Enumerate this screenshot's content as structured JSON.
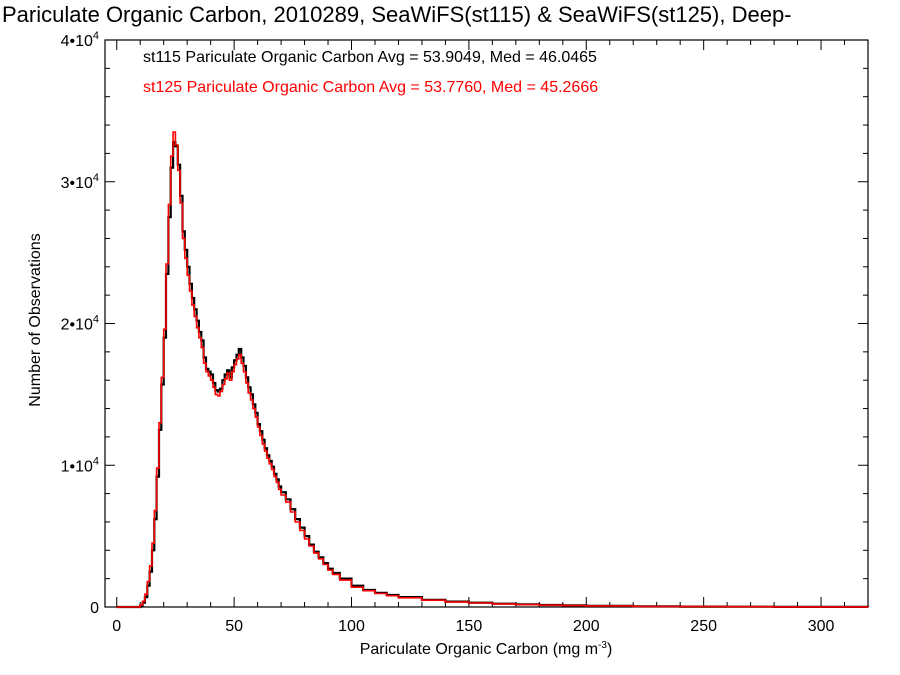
{
  "chart_data": {
    "type": "line",
    "title": "Pariculate Organic Carbon, 2010289, SeaWiFS(st115) & SeaWiFS(st125), Deep-",
    "xlabel_main": "Pariculate Organic Carbon (mg m",
    "xlabel_sup": "-3",
    "xlabel_end": ")",
    "ylabel": "Number of Observations",
    "xlim": [
      -5,
      320
    ],
    "ylim": [
      0,
      40000
    ],
    "x_ticks": [
      0,
      50,
      100,
      150,
      200,
      250,
      300
    ],
    "x_tick_labels": [
      "0",
      "50",
      "100",
      "150",
      "200",
      "250",
      "300"
    ],
    "y_ticks": [
      {
        "value": 0,
        "base": "0",
        "exp": ""
      },
      {
        "value": 10000,
        "base": "1•10",
        "exp": "4"
      },
      {
        "value": 20000,
        "base": "2•10",
        "exp": "4"
      },
      {
        "value": 30000,
        "base": "3•10",
        "exp": "4"
      },
      {
        "value": 40000,
        "base": "4•10",
        "exp": "4"
      }
    ],
    "legend": [
      {
        "text": "st115 Pariculate Organic Carbon Avg = 53.9049, Med = 46.0465",
        "color": "#000000"
      },
      {
        "text": "st125 Pariculate Organic Carbon Avg = 53.7760, Med = 45.2666",
        "color": "#ff0000"
      }
    ],
    "series": [
      {
        "color": "#000000",
        "x": [
          0,
          8,
          10,
          11,
          12,
          13,
          14,
          15,
          16,
          17,
          18,
          19,
          20,
          21,
          22,
          23,
          24,
          25,
          26,
          27,
          28,
          29,
          30,
          31,
          32,
          33,
          34,
          35,
          36,
          37,
          38,
          39,
          40,
          41,
          42,
          43,
          44,
          45,
          46,
          47,
          48,
          49,
          50,
          51,
          52,
          53,
          54,
          55,
          56,
          57,
          58,
          59,
          60,
          61,
          62,
          63,
          64,
          65,
          66,
          67,
          68,
          69,
          70,
          72,
          74,
          76,
          78,
          80,
          82,
          84,
          86,
          88,
          90,
          92,
          95,
          100,
          105,
          110,
          115,
          120,
          130,
          140,
          150,
          160,
          170,
          180,
          190,
          200,
          220,
          240,
          260,
          280,
          300,
          320
        ],
        "y": [
          0,
          0,
          100,
          300,
          700,
          1500,
          2500,
          4000,
          6200,
          9200,
          12500,
          15700,
          19000,
          23500,
          27500,
          31000,
          32800,
          32500,
          31200,
          29000,
          26500,
          25200,
          24000,
          22800,
          21800,
          21000,
          20200,
          19400,
          18800,
          17600,
          16800,
          16600,
          16400,
          15800,
          15300,
          15200,
          15400,
          16000,
          16400,
          16700,
          16200,
          16900,
          17400,
          17800,
          18200,
          17600,
          17000,
          16200,
          15500,
          15000,
          14300,
          13700,
          12900,
          12400,
          11800,
          11200,
          10700,
          10300,
          9900,
          9400,
          9000,
          8500,
          8100,
          7600,
          6900,
          6200,
          5600,
          5000,
          4400,
          3900,
          3500,
          3100,
          2700,
          2400,
          2000,
          1500,
          1200,
          1000,
          850,
          700,
          500,
          380,
          300,
          230,
          180,
          140,
          110,
          80,
          50,
          30,
          20,
          10,
          5,
          0
        ]
      },
      {
        "color": "#ff0000",
        "x": [
          0,
          8,
          10,
          11,
          12,
          13,
          14,
          15,
          16,
          17,
          18,
          19,
          20,
          21,
          22,
          23,
          24,
          25,
          26,
          27,
          28,
          29,
          30,
          31,
          32,
          33,
          34,
          35,
          36,
          37,
          38,
          39,
          40,
          41,
          42,
          43,
          44,
          45,
          46,
          47,
          48,
          49,
          50,
          51,
          52,
          53,
          54,
          55,
          56,
          57,
          58,
          59,
          60,
          61,
          62,
          63,
          64,
          65,
          66,
          67,
          68,
          69,
          70,
          72,
          74,
          76,
          78,
          80,
          82,
          84,
          86,
          88,
          90,
          92,
          95,
          100,
          105,
          110,
          115,
          120,
          130,
          140,
          150,
          160,
          170,
          180,
          190,
          200,
          220,
          240,
          260,
          280,
          300,
          320
        ],
        "y": [
          0,
          0,
          150,
          400,
          900,
          1800,
          2900,
          4500,
          6800,
          9800,
          13000,
          16200,
          19600,
          24200,
          28400,
          31800,
          33500,
          32600,
          30800,
          28500,
          26000,
          24600,
          23400,
          22300,
          21300,
          20500,
          19700,
          19000,
          18300,
          17200,
          16600,
          16300,
          16000,
          15500,
          15000,
          14900,
          15200,
          15700,
          16100,
          16500,
          16000,
          16600,
          17100,
          17500,
          17800,
          17200,
          16600,
          15800,
          15100,
          14600,
          14000,
          13400,
          12700,
          12100,
          11500,
          11000,
          10500,
          10100,
          9700,
          9200,
          8800,
          8300,
          7900,
          7400,
          6700,
          6000,
          5400,
          4800,
          4300,
          3800,
          3400,
          3000,
          2600,
          2300,
          1900,
          1400,
          1150,
          950,
          800,
          650,
          480,
          360,
          280,
          220,
          170,
          130,
          100,
          75,
          45,
          28,
          18,
          9,
          4,
          0
        ]
      }
    ]
  }
}
